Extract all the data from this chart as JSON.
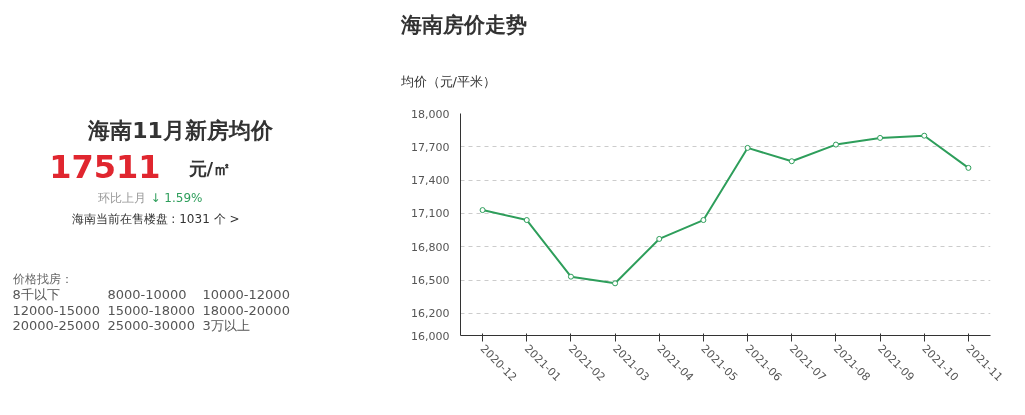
{
  "chart_data": [
    {
      "type": "other",
      "title": "海南11月新房均价",
      "annotations": [
        "17511",
        "元/㎡",
        "环比上月",
        "↓ 1.59%",
        "海南当前在售楼盘 : 1031 个 >",
        "价格找房：",
        "8千以下",
        "8000-10000",
        "10000-12000",
        "12000-15000",
        "15000-18000",
        "18000-20000",
        "20000-25000",
        "25000-30000",
        "3万以上"
      ]
    },
    {
      "type": "line",
      "title": "海南房价走势",
      "ylabel": "均价（元/平米）",
      "categories": [
        "2020-12",
        "2021-01",
        "2021-02",
        "2021-03",
        "2021-04",
        "2021-05",
        "2021-06",
        "2021-07",
        "2021-08",
        "2021-09",
        "2021-10",
        "2021-11"
      ],
      "series": [
        {
          "color": "#2e9e5b",
          "values": [
            17130,
            17040,
            16530,
            16470,
            16870,
            17040,
            17690,
            17570,
            17720,
            17780,
            17800,
            17510
          ]
        }
      ],
      "ylim": [
        16000,
        18000
      ],
      "yticks": [
        {
          "value": 16000,
          "label": "16,000"
        },
        {
          "value": 16200,
          "label": "16,200"
        },
        {
          "value": 16500,
          "label": "16,500"
        },
        {
          "value": 16800,
          "label": "16,800"
        },
        {
          "value": 17100,
          "label": "17,100"
        },
        {
          "value": 17400,
          "label": "17,400"
        },
        {
          "value": 17700,
          "label": "17,700"
        },
        {
          "value": 18000,
          "label": "18,000"
        }
      ],
      "grid": "y",
      "marker": "circle",
      "line_style": "solid"
    }
  ]
}
